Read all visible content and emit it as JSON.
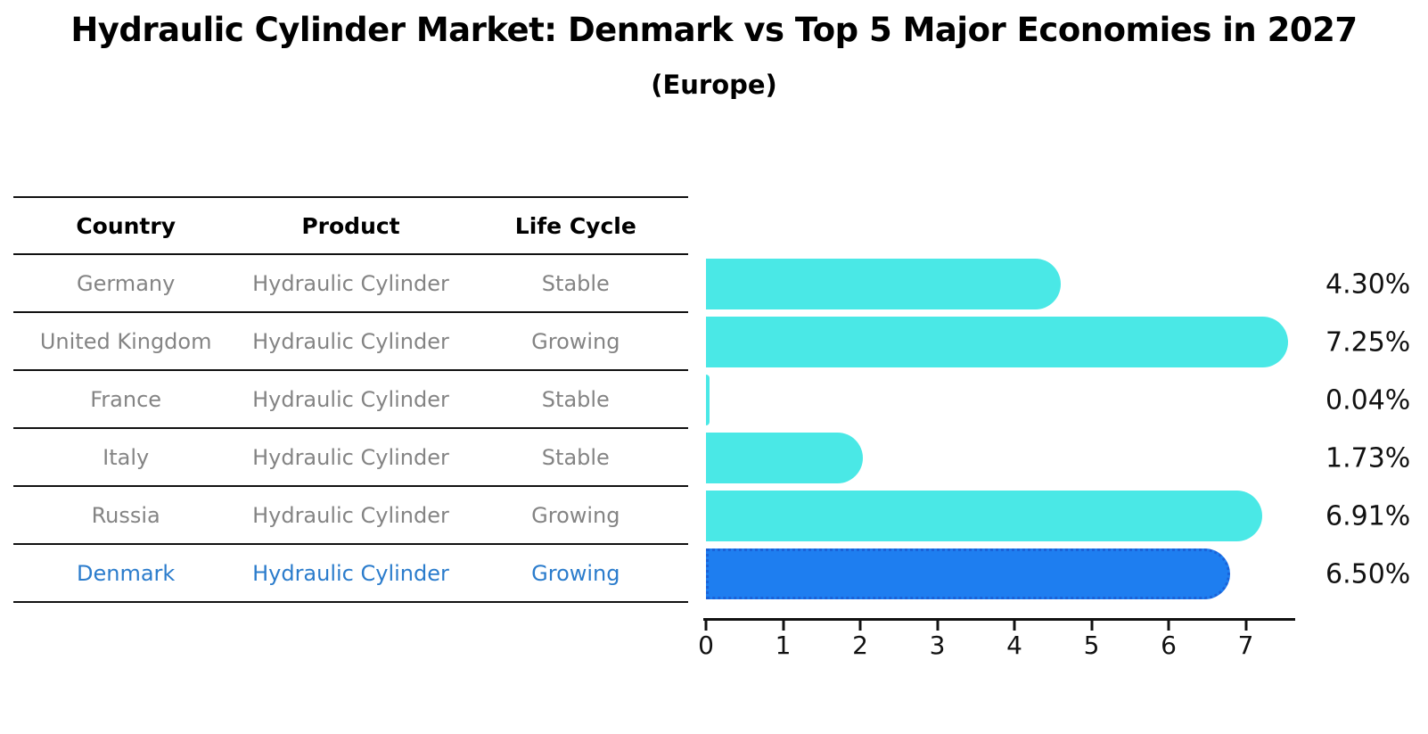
{
  "header": {
    "title": "Hydraulic Cylinder Market: Denmark vs Top 5 Major Economies in 2027",
    "subtitle": "(Europe)"
  },
  "table": {
    "columns": [
      "Country",
      "Product",
      "Life Cycle"
    ],
    "rows": [
      {
        "country": "Germany",
        "product": "Hydraulic Cylinder",
        "life_cycle": "Stable",
        "highlight": false
      },
      {
        "country": "United Kingdom",
        "product": "Hydraulic Cylinder",
        "life_cycle": "Growing",
        "highlight": false
      },
      {
        "country": "France",
        "product": "Hydraulic Cylinder",
        "life_cycle": "Stable",
        "highlight": false
      },
      {
        "country": "Italy",
        "product": "Hydraulic Cylinder",
        "life_cycle": "Stable",
        "highlight": false
      },
      {
        "country": "Russia",
        "product": "Hydraulic Cylinder",
        "life_cycle": "Growing",
        "highlight": false
      },
      {
        "country": "Denmark",
        "product": "Hydraulic Cylinder",
        "life_cycle": "Growing",
        "highlight": true
      }
    ]
  },
  "chart_data": {
    "type": "bar",
    "orientation": "horizontal",
    "title": "Hydraulic Cylinder Market: Denmark vs Top 5 Major Economies in 2027",
    "subtitle": "(Europe)",
    "categories": [
      "Germany",
      "United Kingdom",
      "France",
      "Italy",
      "Russia",
      "Denmark"
    ],
    "values": [
      4.3,
      7.25,
      0.04,
      1.73,
      6.91,
      6.5
    ],
    "value_labels": [
      "4.30%",
      "7.25%",
      "0.04%",
      "1.73%",
      "6.91%",
      "6.50%"
    ],
    "x_ticks": [
      0,
      1,
      2,
      3,
      4,
      5,
      6,
      7
    ],
    "xlim": [
      0,
      7.6
    ],
    "grid": false,
    "legend": "none",
    "highlight_index": 5,
    "colors": {
      "bar": "#4ae8e6",
      "highlight_bar": "#1e7ef0",
      "highlight_border": "#1b62d8",
      "value_label": "#111111",
      "axis": "#111111",
      "table_text": "#848484",
      "highlight_text": "#2b7ccc",
      "header_text": "#000000"
    }
  }
}
